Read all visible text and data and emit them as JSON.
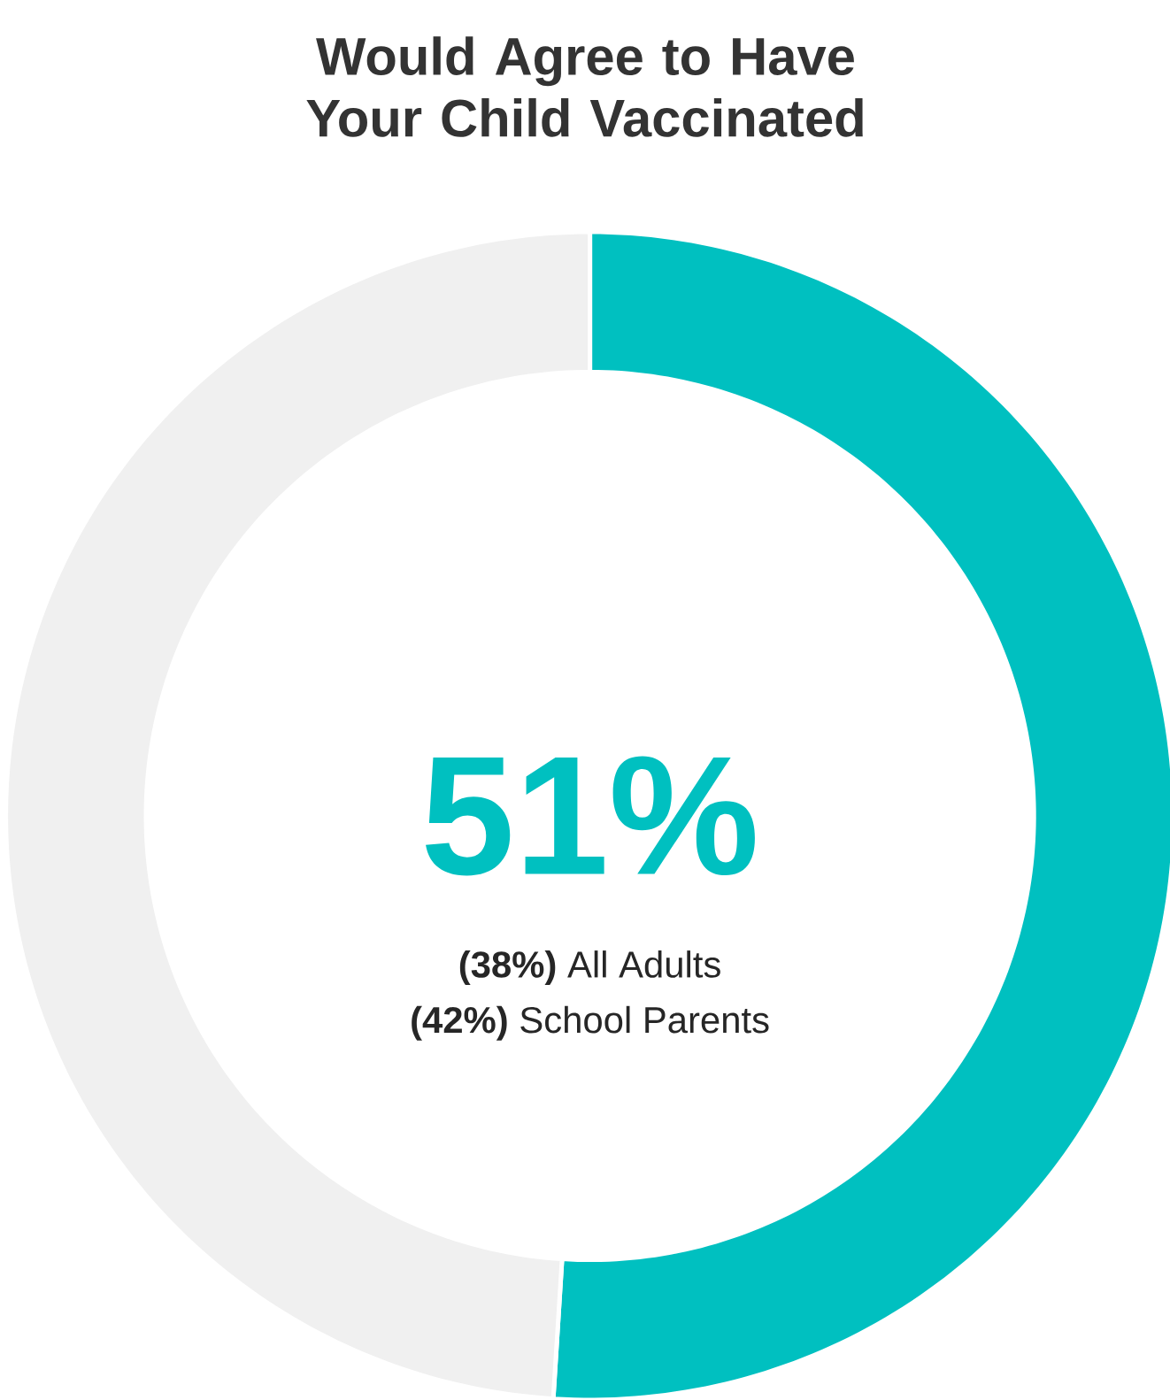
{
  "chart_data": {
    "type": "donut",
    "title": "Would Agree to Have Your Child Vaccinated",
    "categories": [
      null,
      null
    ],
    "values": [
      51,
      49
    ],
    "colors": [
      "#00c0c0",
      "#f0f0f0"
    ],
    "value_labels": [
      "51%",
      null
    ],
    "annotations": [
      "**(38%)** All Adults",
      "**(42%)** School Parents"
    ]
  }
}
